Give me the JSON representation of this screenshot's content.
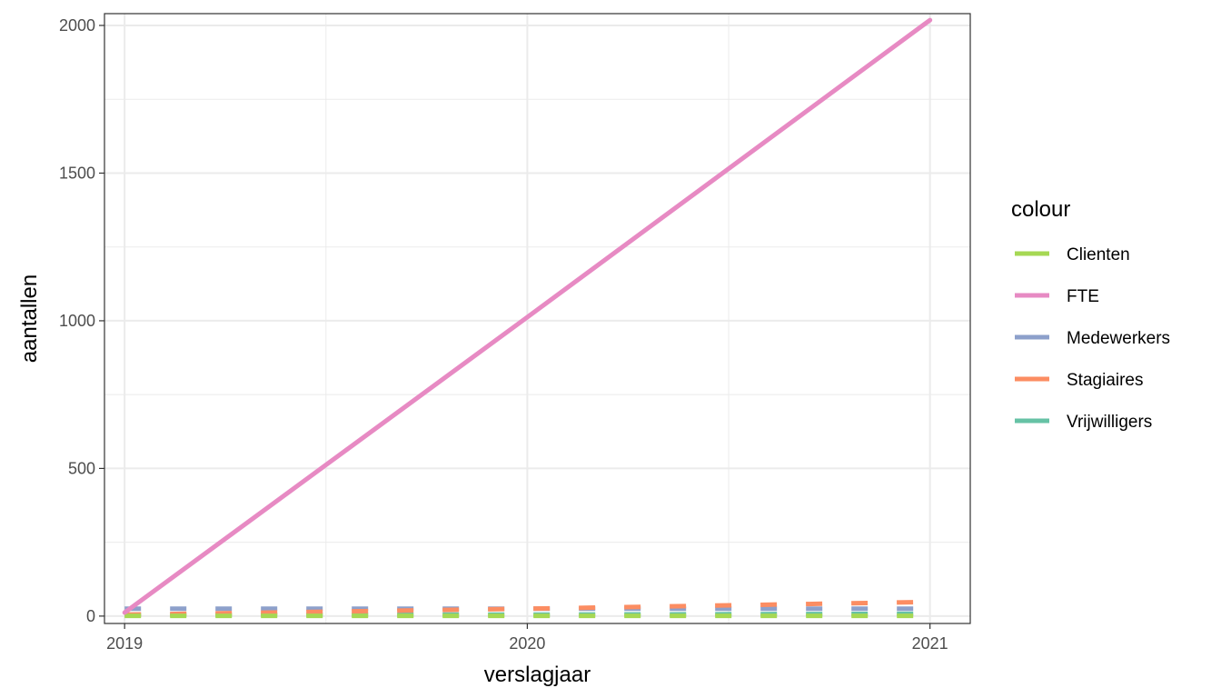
{
  "chart_data": {
    "type": "line",
    "title": "",
    "xlabel": "verslagjaar",
    "ylabel": "aantallen",
    "x": [
      2019,
      2020,
      2021
    ],
    "xticks": [
      2019,
      2020,
      2021
    ],
    "xlim": [
      2018.95,
      2021.1
    ],
    "yticks": [
      0,
      500,
      1000,
      1500,
      2000
    ],
    "ylim": [
      -25,
      2040
    ],
    "grid": true,
    "legend_title": "colour",
    "legend_position": "right",
    "series": [
      {
        "name": "Clienten",
        "color": "#a6d854",
        "style": "dashed",
        "values": [
          1,
          1,
          1
        ]
      },
      {
        "name": "FTE",
        "color": "#e78ac3",
        "style": "solid",
        "values": [
          12,
          1012,
          2018
        ]
      },
      {
        "name": "Medewerkers",
        "color": "#8da0cb",
        "style": "dashed",
        "values": [
          25,
          25,
          25
        ]
      },
      {
        "name": "Stagiaires",
        "color": "#fc8d62",
        "style": "dashed",
        "values": [
          5,
          25,
          48
        ]
      },
      {
        "name": "Vrijwilligers",
        "color": "#66c2a5",
        "style": "dashed",
        "values": [
          5,
          5,
          8
        ]
      }
    ]
  }
}
